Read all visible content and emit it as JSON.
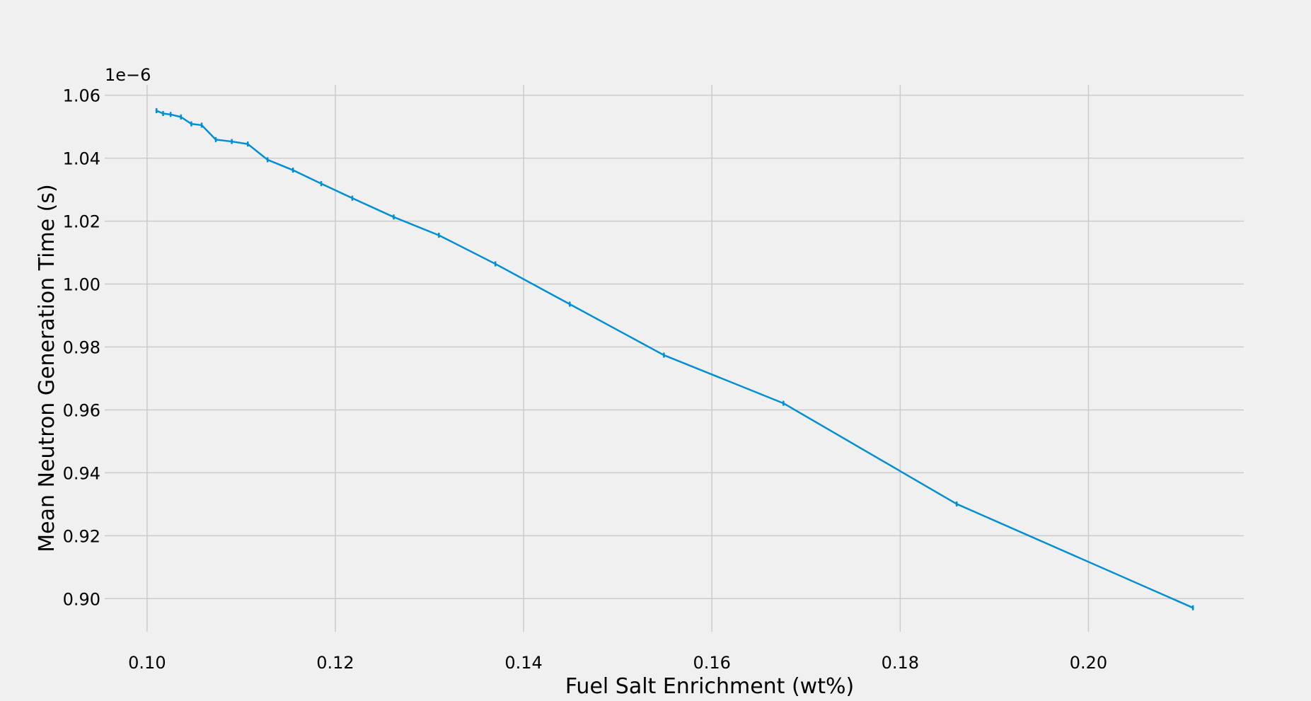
{
  "chart_data": {
    "type": "line",
    "title": "",
    "xlabel": "Fuel Salt Enrichment (wt%)",
    "ylabel": "Mean Neutron Generation Time (s)",
    "y_offset_text": "1e−6",
    "xlim": [
      0.0955,
      0.2165
    ],
    "ylim": [
      0.8895,
      1.0633
    ],
    "xticks": [
      0.1,
      0.12,
      0.14,
      0.16,
      0.18,
      0.2
    ],
    "xtick_labels": [
      "0.10",
      "0.12",
      "0.14",
      "0.16",
      "0.18",
      "0.20"
    ],
    "yticks": [
      0.9,
      0.92,
      0.94,
      0.96,
      0.98,
      1.0,
      1.02,
      1.04,
      1.06
    ],
    "ytick_labels": [
      "0.90",
      "0.92",
      "0.94",
      "0.96",
      "0.98",
      "1.00",
      "1.02",
      "1.04",
      "1.06"
    ],
    "grid": true,
    "style": "fivethirtyeight",
    "line_color": "#008fd5",
    "series": [
      {
        "x": [
          0.101,
          0.1017,
          0.1025,
          0.1036,
          0.1047,
          0.1058,
          0.1073,
          0.109,
          0.1107,
          0.1128,
          0.1155,
          0.1185,
          0.1218,
          0.1262,
          0.131,
          0.137,
          0.1449,
          0.1549,
          0.1676,
          0.186,
          0.2111
        ],
        "y": [
          1.0551,
          1.0542,
          1.0539,
          1.0531,
          1.0509,
          1.0505,
          1.0459,
          1.0453,
          1.0445,
          1.0395,
          1.0362,
          1.0319,
          1.0273,
          1.0213,
          1.0155,
          1.0064,
          0.9936,
          0.9774,
          0.9621,
          0.9301,
          0.8971
        ],
        "yerr": [
          0.0008,
          0.0008,
          0.0008,
          0.0008,
          0.0008,
          0.0008,
          0.0008,
          0.0008,
          0.0008,
          0.0008,
          0.0008,
          0.0008,
          0.0008,
          0.0008,
          0.0008,
          0.0008,
          0.0008,
          0.0008,
          0.0008,
          0.0008,
          0.0008
        ]
      }
    ]
  }
}
